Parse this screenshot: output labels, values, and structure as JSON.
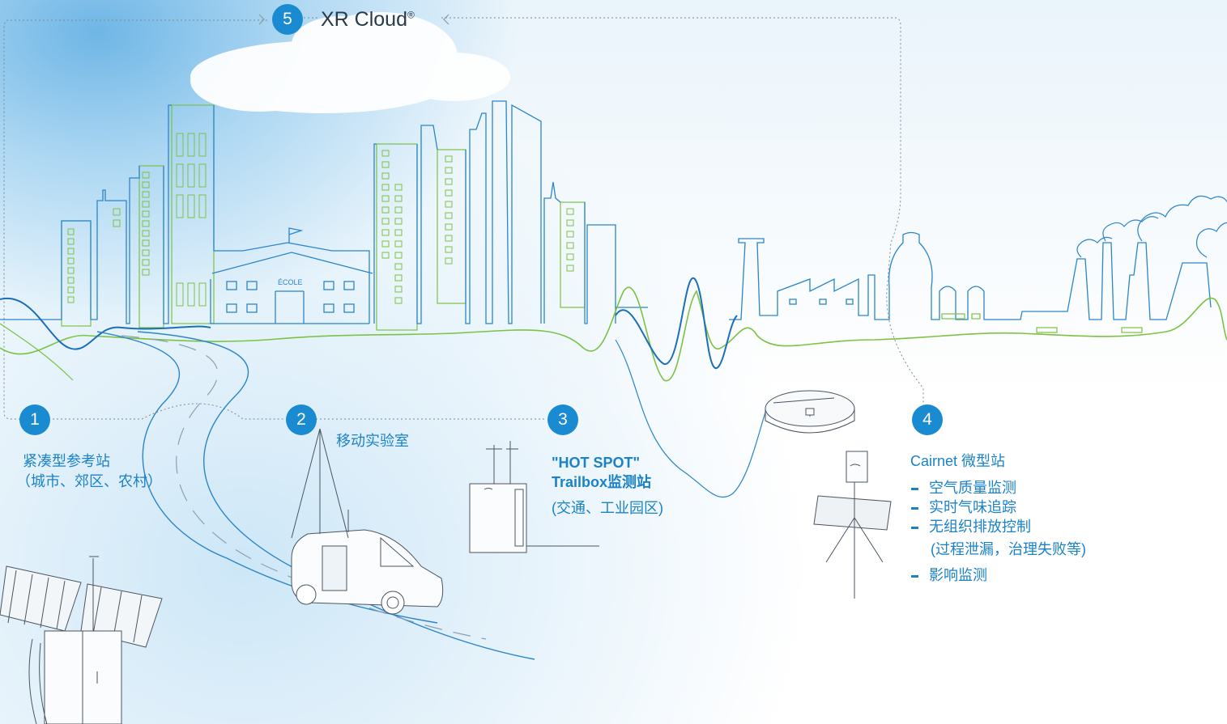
{
  "cloud": {
    "number": "5",
    "title": "XR Cloud",
    "mark": "®"
  },
  "stations": [
    {
      "number": "1",
      "lines": [
        "紧凑型参考站",
        "（城市、郊区、农村）"
      ]
    },
    {
      "number": "2",
      "lines": [
        "移动实验室"
      ]
    },
    {
      "number": "3",
      "lines": [
        "\"HOT SPOT\"",
        "Trailbox监测站",
        "(交通、工业园区)"
      ]
    },
    {
      "number": "4",
      "title": "Cairnet 微型站",
      "bullets": [
        "空气质量监测",
        "实时气味追踪",
        "无组织排放控制"
      ],
      "note": "(过程泄漏，治理失败等)",
      "last_bullet": "影响监测"
    }
  ],
  "school_label": "ÉCOLE",
  "colors": {
    "blue": "#1b82c8",
    "badge": "#1a8bd1",
    "green": "#7cc243",
    "line_blue": "#2b85c9"
  }
}
